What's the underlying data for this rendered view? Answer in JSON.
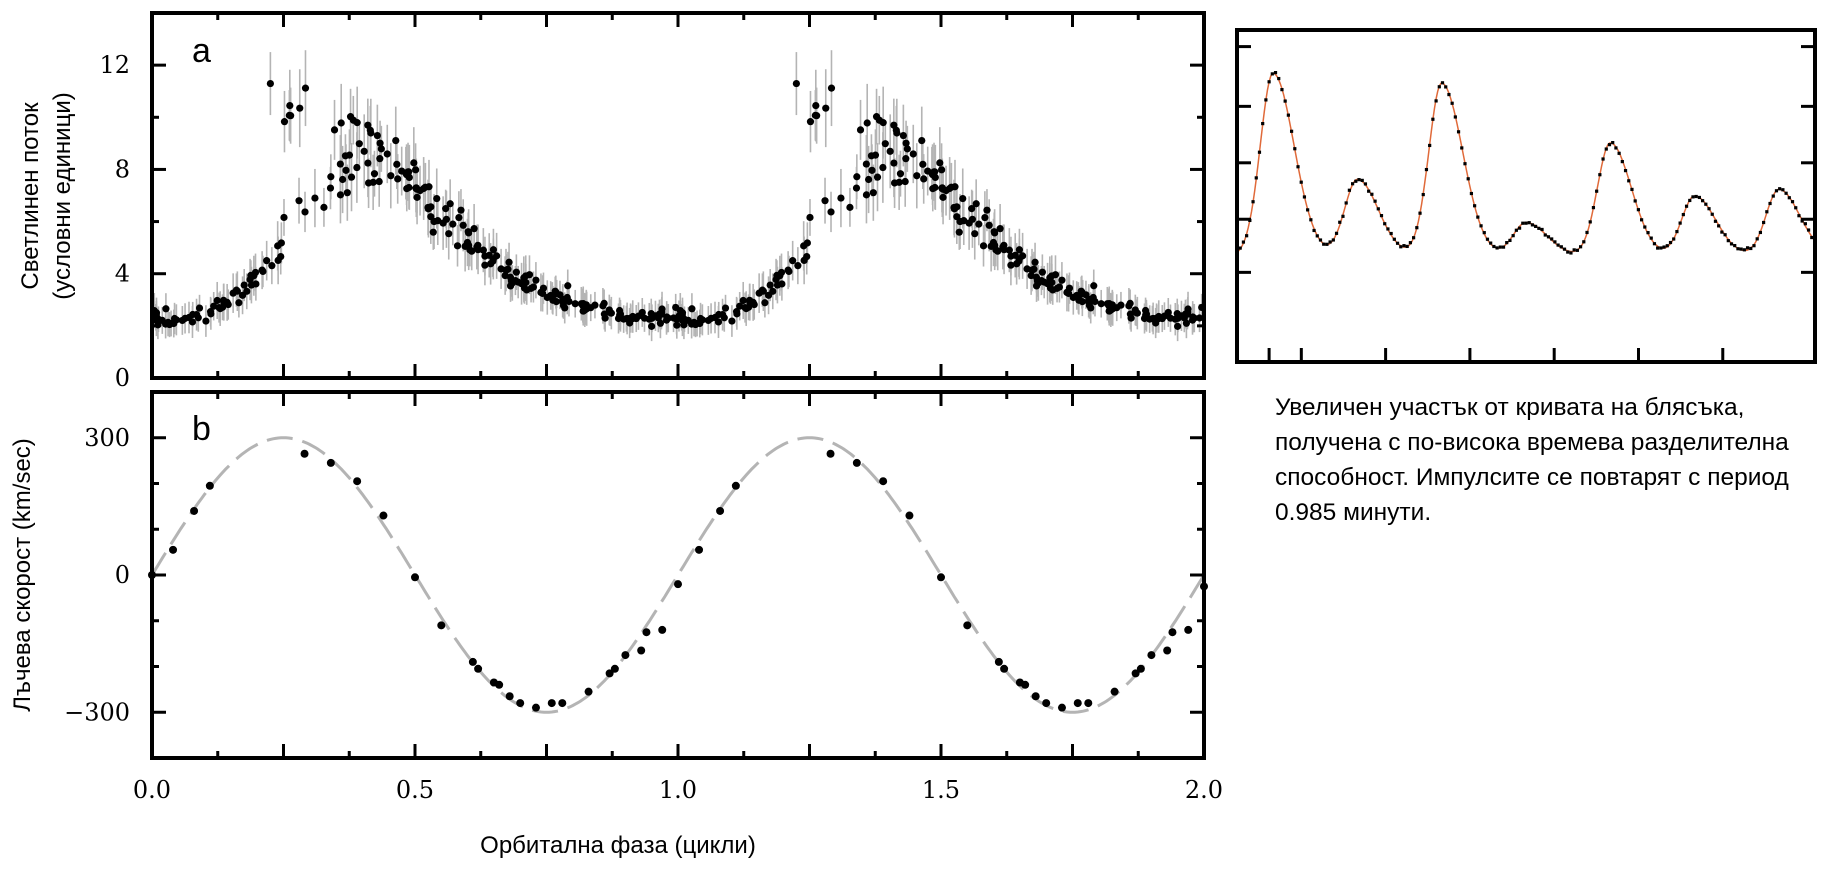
{
  "chart_data": [
    {
      "panel": "a",
      "type": "scatter",
      "ylabel_line1": "Светлинен поток",
      "ylabel_line2": "(условни единици)",
      "xlim": [
        0.0,
        2.0
      ],
      "ylim": [
        0,
        14
      ],
      "yticks": [
        0,
        4,
        8,
        12
      ],
      "error_bars": true,
      "point_color": "#000000",
      "error_color": "#b4b4b4",
      "profile": {
        "x": [
          0.0,
          0.05,
          0.1,
          0.15,
          0.2,
          0.25,
          0.3,
          0.35,
          0.4,
          0.45,
          0.5,
          0.55,
          0.6,
          0.65,
          0.7,
          0.75,
          0.8,
          0.85,
          0.9,
          0.95,
          1.0
        ],
        "y": [
          2.3,
          2.2,
          2.4,
          2.9,
          3.8,
          5.2,
          6.8,
          7.9,
          8.4,
          8.2,
          7.4,
          6.4,
          5.3,
          4.4,
          3.7,
          3.2,
          2.9,
          2.6,
          2.4,
          2.3,
          2.3
        ]
      },
      "upper_branch": {
        "x": [
          0.21,
          0.25,
          0.3,
          0.35,
          0.4,
          0.42
        ],
        "y": [
          11.5,
          10.2,
          11.0,
          9.6,
          10.4,
          9.2
        ]
      }
    },
    {
      "panel": "b",
      "type": "scatter",
      "xlabel": "Орбитална фаза (цикли)",
      "ylabel": "Лъчева скорост (km/sec)",
      "xlim": [
        0.0,
        2.0
      ],
      "ylim": [
        -400,
        400
      ],
      "yticks": [
        -300,
        0,
        300
      ],
      "xticks": [
        0.0,
        0.5,
        1.0,
        1.5,
        2.0
      ],
      "xtick_labels": [
        "0.0",
        "0.5",
        "1.0",
        "1.5",
        "2.0"
      ],
      "ytick_labels": [
        "−300",
        "0",
        "300"
      ],
      "model": {
        "type": "sine",
        "amplitude": 300,
        "period": 1.0,
        "phase_of_max": 0.25,
        "style": "dashed",
        "color": "#b4b4b4"
      },
      "points": {
        "x": [
          0.0,
          0.04,
          0.08,
          0.11,
          0.29,
          0.34,
          0.39,
          0.44,
          0.5,
          0.55,
          0.61,
          0.62,
          0.65,
          0.66,
          0.68,
          0.7,
          0.73,
          0.76,
          0.78,
          0.83,
          0.87,
          0.88,
          0.9,
          0.93,
          0.94,
          0.97,
          1.0,
          1.04,
          1.08,
          1.11,
          1.29,
          1.34,
          1.39,
          1.44,
          1.5,
          1.55,
          1.61,
          1.62,
          1.65,
          1.66,
          1.68,
          1.7,
          1.73,
          1.76,
          1.78,
          1.83,
          1.87,
          1.88,
          1.9,
          1.93,
          1.94,
          1.97,
          2.0
        ],
        "y": [
          0,
          55,
          140,
          195,
          265,
          245,
          205,
          130,
          -5,
          -110,
          -190,
          -205,
          -235,
          -240,
          -265,
          -280,
          -290,
          -280,
          -280,
          -255,
          -215,
          -205,
          -175,
          -165,
          -125,
          -120,
          -20,
          55,
          140,
          195,
          265,
          245,
          205,
          130,
          -5,
          -110,
          -190,
          -205,
          -235,
          -240,
          -265,
          -280,
          -290,
          -280,
          -280,
          -255,
          -215,
          -205,
          -175,
          -165,
          -125,
          -120,
          -25
        ]
      }
    },
    {
      "panel": "inset",
      "type": "line",
      "line_color": "#e06a3a",
      "point_color": "#000000",
      "pulse_period_minutes": 0.985,
      "xlim": [
        0,
        7.2
      ],
      "ylim": [
        0,
        1
      ],
      "peaks": {
        "x": [
          0.45,
          1.5,
          2.55,
          3.6,
          4.65,
          5.7,
          6.75
        ],
        "y": [
          0.87,
          0.55,
          0.84,
          0.42,
          0.66,
          0.5,
          0.52
        ]
      },
      "baseline": 0.32
    }
  ],
  "figure": {
    "panel_a_letter": "a",
    "panel_b_letter": "b",
    "caption": "Увеличен участък от кривата на блясъка, получена с по-висока времева разделителна способност. Импулсите се повтарят с период 0.985 минути."
  }
}
